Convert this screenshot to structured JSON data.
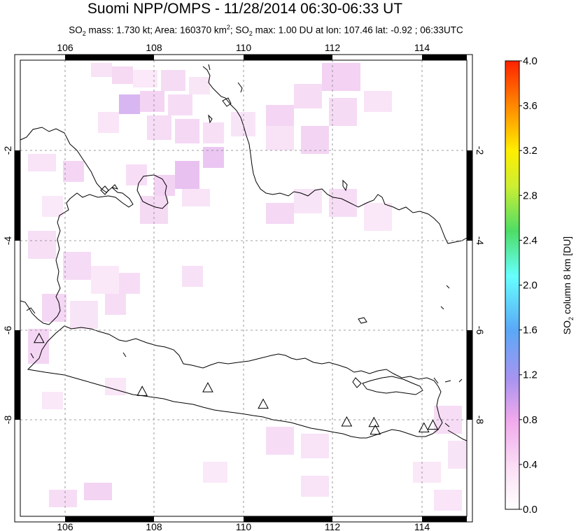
{
  "title": "Suomi NPP/OMPS - 11/28/2014 06:30-06:33 UT",
  "subtitle": {
    "so2_prefix": "SO",
    "mass_text": " mass: 1.730 kt; Area: 160370 km",
    "area_sup": "2",
    "max_prefix": "; SO",
    "max_text": " max: 1.00 DU at lon: 107.46 lat: -0.92 ; 06:33UTC"
  },
  "map": {
    "lon_range": [
      105,
      115
    ],
    "lat_range": [
      -10,
      0
    ],
    "lon_ticks": [
      "106",
      "108",
      "110",
      "112",
      "114"
    ],
    "lat_ticks": [
      "-2",
      "-4",
      "-6",
      "-8"
    ],
    "graticule": "dashed grey",
    "volcanoes": [
      {
        "lon": 105.42,
        "lat": -6.1
      },
      {
        "lon": 107.73,
        "lat": -7.26
      },
      {
        "lon": 109.2,
        "lat": -7.18
      },
      {
        "lon": 110.44,
        "lat": -7.54
      },
      {
        "lon": 112.31,
        "lat": -7.93
      },
      {
        "lon": 112.92,
        "lat": -7.94
      },
      {
        "lon": 112.95,
        "lat": -8.11
      },
      {
        "lon": 114.04,
        "lat": -8.06
      },
      {
        "lon": 114.24,
        "lat": -8.0
      }
    ],
    "volcano_icon": "triangle-outline-icon"
  },
  "colorbar": {
    "label_prefix": "SO",
    "label_suffix": " column 8 km [DU]",
    "ticks": [
      "4.0",
      "3.6",
      "3.2",
      "2.8",
      "2.4",
      "2.0",
      "1.6",
      "1.2",
      "0.8",
      "0.4",
      "0.0"
    ],
    "min": 0.0,
    "max": 4.0,
    "colors": [
      "#ffffff",
      "#f0a0e8",
      "#9e8ff0",
      "#5aa8f7",
      "#66ffff",
      "#4ddd66",
      "#ccee33",
      "#ffee00",
      "#ff8800",
      "#ff2200"
    ]
  }
}
